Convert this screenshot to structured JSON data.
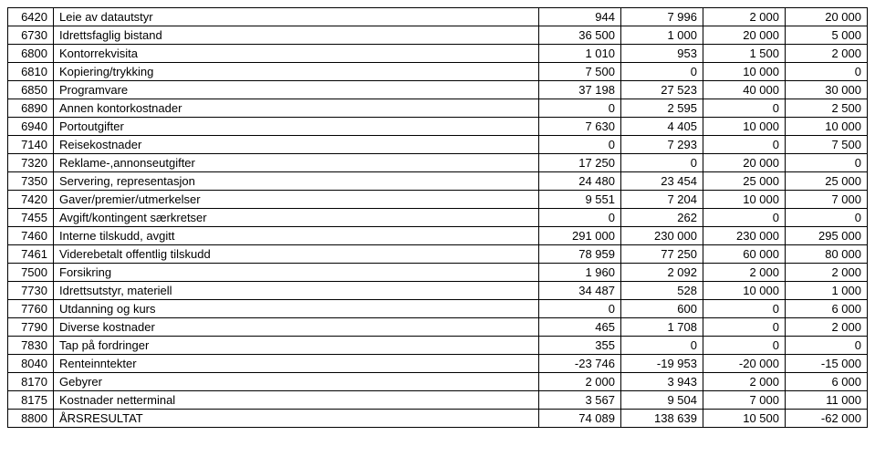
{
  "table": {
    "columns": [
      "code",
      "description",
      "v1",
      "v2",
      "v3",
      "v4"
    ],
    "col_classes": [
      "col-code",
      "col-desc",
      "col-num",
      "col-num",
      "col-num",
      "col-num"
    ],
    "rows": [
      [
        "6420",
        "Leie av datautstyr",
        "944",
        "7 996",
        "2 000",
        "20 000"
      ],
      [
        "6730",
        "Idrettsfaglig bistand",
        "36 500",
        "1 000",
        "20 000",
        "5 000"
      ],
      [
        "6800",
        "Kontorrekvisita",
        "1 010",
        "953",
        "1 500",
        "2 000"
      ],
      [
        "6810",
        "Kopiering/trykking",
        "7 500",
        "0",
        "10 000",
        "0"
      ],
      [
        "6850",
        "Programvare",
        "37 198",
        "27 523",
        "40 000",
        "30 000"
      ],
      [
        "6890",
        "Annen kontorkostnader",
        "0",
        "2 595",
        "0",
        "2 500"
      ],
      [
        "6940",
        "Portoutgifter",
        "7 630",
        "4 405",
        "10 000",
        "10 000"
      ],
      [
        "7140",
        "Reisekostnader",
        "0",
        "7 293",
        "0",
        "7 500"
      ],
      [
        "7320",
        "Reklame-,annonseutgifter",
        "17 250",
        "0",
        "20 000",
        "0"
      ],
      [
        "7350",
        "Servering, representasjon",
        "24 480",
        "23 454",
        "25 000",
        "25 000"
      ],
      [
        "7420",
        "Gaver/premier/utmerkelser",
        "9 551",
        "7 204",
        "10 000",
        "7 000"
      ],
      [
        "7455",
        "Avgift/kontingent særkretser",
        "0",
        "262",
        "0",
        "0"
      ],
      [
        "7460",
        "Interne tilskudd, avgitt",
        "291 000",
        "230 000",
        "230 000",
        "295 000"
      ],
      [
        "7461",
        "Viderebetalt offentlig tilskudd",
        "78 959",
        "77 250",
        "60 000",
        "80 000"
      ],
      [
        "7500",
        "Forsikring",
        "1 960",
        "2 092",
        "2 000",
        "2 000"
      ],
      [
        "7730",
        "Idrettsutstyr, materiell",
        "34 487",
        "528",
        "10 000",
        "1 000"
      ],
      [
        "7760",
        "Utdanning og kurs",
        "0",
        "600",
        "0",
        "6 000"
      ],
      [
        "7790",
        "Diverse kostnader",
        "465",
        "1 708",
        "0",
        "2 000"
      ],
      [
        "7830",
        "Tap på fordringer",
        "355",
        "0",
        "0",
        "0"
      ],
      [
        "8040",
        "Renteinntekter",
        "-23 746",
        "-19 953",
        "-20 000",
        "-15 000"
      ],
      [
        "8170",
        "Gebyrer",
        "2 000",
        "3 943",
        "2 000",
        "6 000"
      ],
      [
        "8175",
        "Kostnader netterminal",
        "3 567",
        "9 504",
        "7 000",
        "11 000"
      ],
      [
        "8800",
        "ÅRSRESULTAT",
        "74 089",
        "138 639",
        "10 500",
        "-62 000"
      ]
    ]
  }
}
